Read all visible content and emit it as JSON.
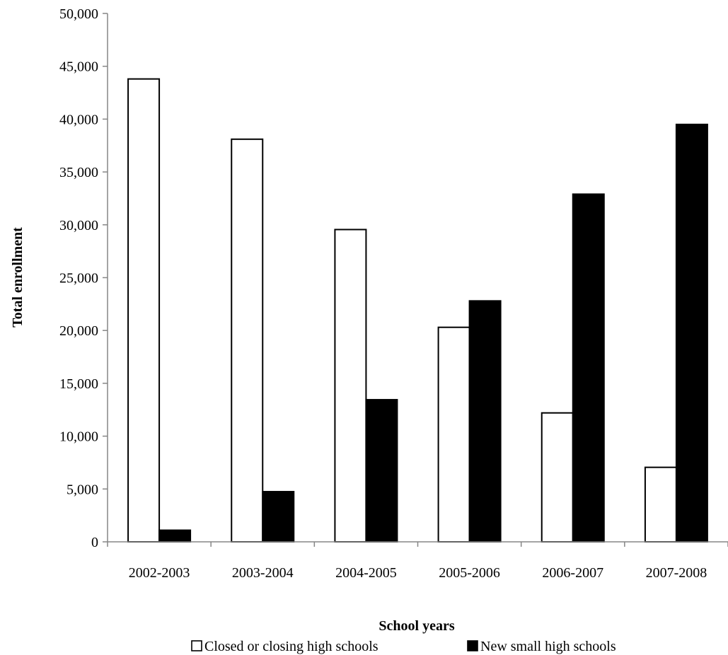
{
  "chart_data": {
    "type": "bar",
    "title": "",
    "xlabel": "School years",
    "ylabel": "Total enrollment",
    "categories": [
      "2002-2003",
      "2003-2004",
      "2004-2005",
      "2005-2006",
      "2006-2007",
      "2007-2008"
    ],
    "series": [
      {
        "name": "Closed or closing high schools",
        "color": "#ffffff",
        "stroke": "#000000",
        "values": [
          43800,
          38100,
          29550,
          20300,
          12200,
          7050
        ]
      },
      {
        "name": "New small high schools",
        "color": "#000000",
        "stroke": "#000000",
        "values": [
          1100,
          4750,
          13450,
          22800,
          32900,
          39500
        ]
      }
    ],
    "ylim": [
      0,
      50000
    ],
    "yticks": [
      0,
      5000,
      10000,
      15000,
      20000,
      25000,
      30000,
      35000,
      40000,
      45000,
      50000
    ],
    "ytick_labels": [
      "0",
      "5,000",
      "10,000",
      "15,000",
      "20,000",
      "25,000",
      "30,000",
      "35,000",
      "40,000",
      "45,000",
      "50,000"
    ],
    "grid": false,
    "legend_position": "bottom"
  }
}
